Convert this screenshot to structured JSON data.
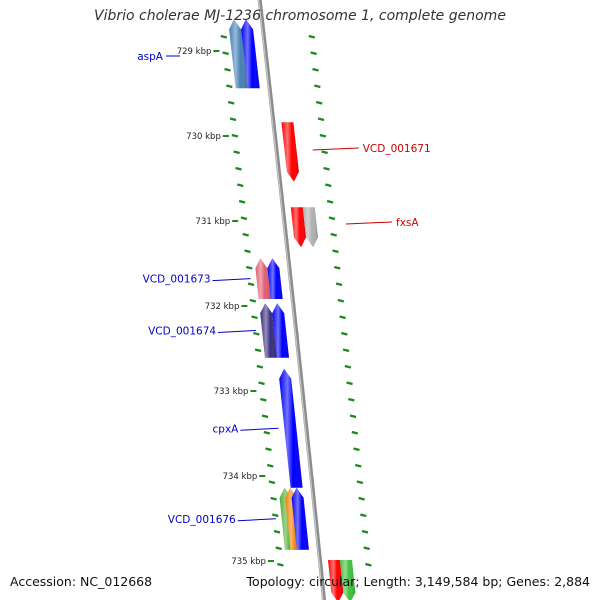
{
  "title": "Vibrio cholerae MJ-1236 chromosome 1, complete genome",
  "footer": {
    "accession_label": "Accession:",
    "accession": "NC_012668",
    "topology_label": "Topology:",
    "topology": "circular",
    "length_label": "Length:",
    "length": "3,149,584 bp",
    "genes_label": "Genes:",
    "genes": "2,884"
  },
  "ticks": [
    {
      "kbp": 729,
      "label": "729 kbp"
    },
    {
      "kbp": 730,
      "label": "730 kbp"
    },
    {
      "kbp": 731,
      "label": "731 kbp"
    },
    {
      "kbp": 732,
      "label": "732 kbp"
    },
    {
      "kbp": 733,
      "label": "733 kbp"
    },
    {
      "kbp": 734,
      "label": "734 kbp"
    },
    {
      "kbp": 735,
      "label": "735 kbp"
    }
  ],
  "genes": [
    {
      "start": 728.64,
      "end": 729.45,
      "strand": "-",
      "track": 1,
      "color": "#4682B4",
      "label": "aspA",
      "label_color": "#0000cc"
    },
    {
      "start": 728.64,
      "end": 729.45,
      "strand": "-",
      "track": 2,
      "color": "#0000FF",
      "label": "",
      "label_color": ""
    },
    {
      "start": 729.85,
      "end": 730.55,
      "strand": "+",
      "track": 4,
      "color": "#FF0000",
      "label": "VCD_001671",
      "label_color": "#cc0000"
    },
    {
      "start": 730.85,
      "end": 731.32,
      "strand": "+",
      "track": 4,
      "color": "#FF0000",
      "label": "",
      "label_color": ""
    },
    {
      "start": 730.85,
      "end": 731.32,
      "strand": "+",
      "track": 5,
      "color": "#B0B0B0",
      "label": "fxsA",
      "label_color": "#cc0000"
    },
    {
      "start": 731.45,
      "end": 731.93,
      "strand": "-",
      "track": 1,
      "color": "#E06070",
      "label": "VCD_001673",
      "label_color": "#0000cc"
    },
    {
      "start": 731.45,
      "end": 731.93,
      "strand": "-",
      "track": 2,
      "color": "#0000FF",
      "label": "",
      "label_color": ""
    },
    {
      "start": 731.98,
      "end": 732.62,
      "strand": "-",
      "track": 1,
      "color": "#3A2F80",
      "label": "VCD_001674",
      "label_color": "#0000cc"
    },
    {
      "start": 731.98,
      "end": 732.62,
      "strand": "-",
      "track": 2,
      "color": "#0000FF",
      "label": "",
      "label_color": ""
    },
    {
      "start": 732.75,
      "end": 734.15,
      "strand": "-",
      "track": 2,
      "color": "#0000FF",
      "label": "cpxA",
      "label_color": "#0000cc"
    },
    {
      "start": 734.15,
      "end": 734.88,
      "strand": "-",
      "track": 1,
      "color": "#50B030",
      "label": "VCD_001676",
      "label_color": "#0000cc"
    },
    {
      "start": 734.15,
      "end": 734.88,
      "strand": "-",
      "track": 1.5,
      "color": "#F08000",
      "label": "",
      "label_color": ""
    },
    {
      "start": 734.15,
      "end": 734.88,
      "strand": "-",
      "track": 2,
      "color": "#0000FF",
      "label": "",
      "label_color": ""
    },
    {
      "start": 735.0,
      "end": 735.5,
      "strand": "+",
      "track": 4,
      "color": "#FF0000",
      "label": "",
      "label_color": ""
    },
    {
      "start": 735.0,
      "end": 735.5,
      "strand": "+",
      "track": 5,
      "color": "#40C040",
      "label": "",
      "label_color": ""
    }
  ],
  "colors": {
    "backbone": "#8c8c8c",
    "dots": "#1a8a1a",
    "minus_label": "#0000cc",
    "plus_label": "#cc0000"
  }
}
